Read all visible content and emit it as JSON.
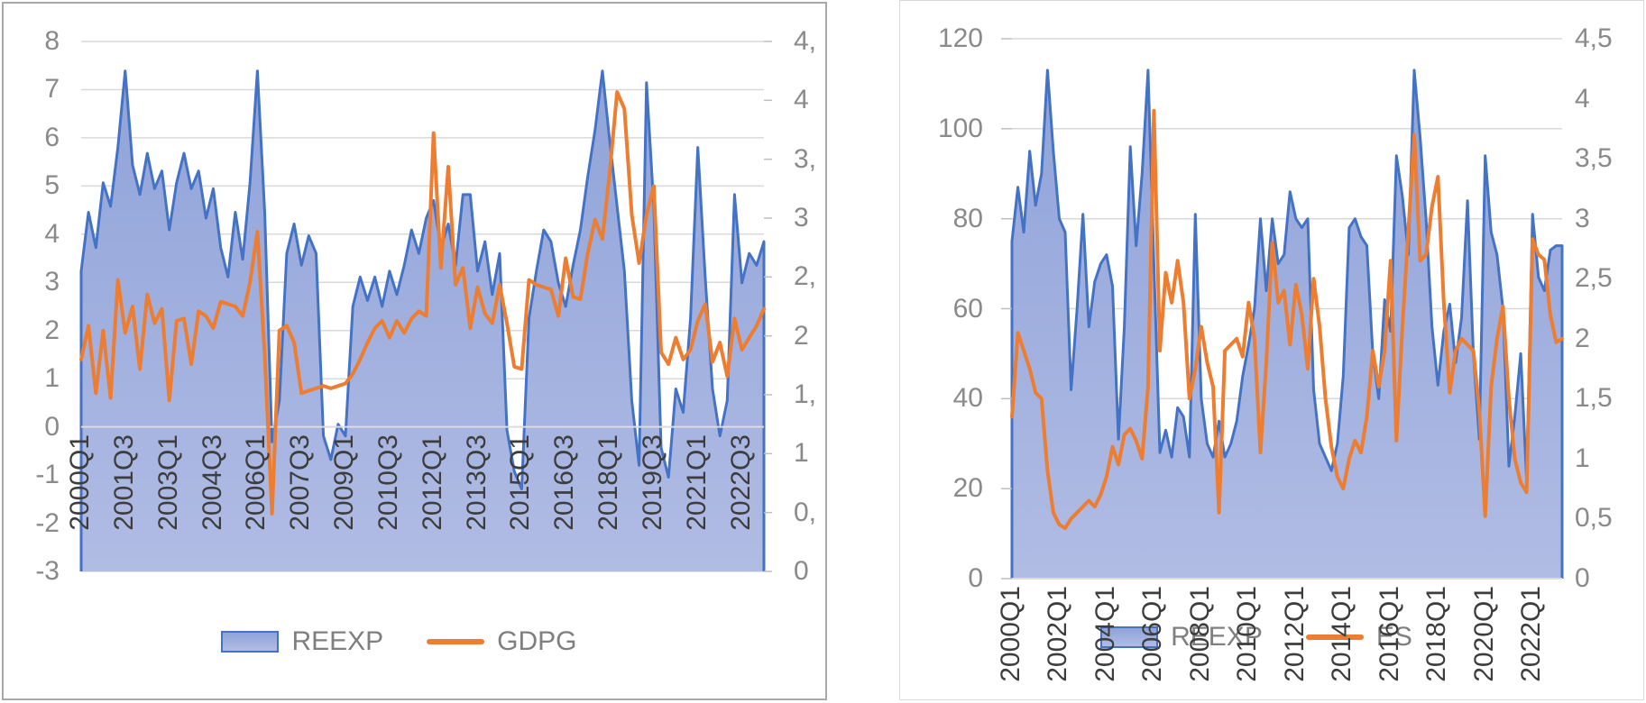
{
  "page": {
    "background": "#ffffff",
    "panel_border_left_chart": "#a8a8a8",
    "panel_border_right_chart": "#d9d9d9",
    "gridline_color": "#d9d9d9",
    "y_tick_text_color": "#8a8a8a",
    "x_tick_text_color": "#3d3d3d",
    "legend_text_color": "#7f7f7f"
  },
  "chart_data": [
    {
      "type": "area+line",
      "title": "",
      "xlabel": "",
      "ylabel": "",
      "grid": true,
      "legend_position": "bottom",
      "categories": [
        "2000Q1",
        "2000Q2",
        "2000Q3",
        "2000Q4",
        "2001Q1",
        "2001Q2",
        "2001Q3",
        "2001Q4",
        "2002Q1",
        "2002Q2",
        "2002Q3",
        "2002Q4",
        "2003Q1",
        "2003Q2",
        "2003Q3",
        "2003Q4",
        "2004Q1",
        "2004Q2",
        "2004Q3",
        "2004Q4",
        "2005Q1",
        "2005Q2",
        "2005Q3",
        "2005Q4",
        "2006Q1",
        "2006Q2",
        "2006Q3",
        "2006Q4",
        "2007Q1",
        "2007Q2",
        "2007Q3",
        "2007Q4",
        "2008Q1",
        "2008Q2",
        "2008Q3",
        "2008Q4",
        "2009Q1",
        "2009Q2",
        "2009Q3",
        "2009Q4",
        "2010Q1",
        "2010Q2",
        "2010Q3",
        "2010Q4",
        "2011Q1",
        "2011Q2",
        "2011Q3",
        "2011Q4",
        "2012Q1",
        "2012Q2",
        "2012Q3",
        "2012Q4",
        "2013Q1",
        "2013Q2",
        "2013Q3",
        "2013Q4",
        "2014Q1",
        "2014Q2",
        "2014Q3",
        "2014Q4",
        "2015Q1",
        "2015Q2",
        "2015Q3",
        "2015Q4",
        "2016Q1",
        "2016Q2",
        "2016Q3",
        "2016Q4",
        "2017Q1",
        "2017Q2",
        "2017Q3",
        "2017Q4",
        "2018Q1",
        "2018Q2",
        "2018Q3",
        "2018Q4",
        "2019Q1",
        "2019Q2",
        "2019Q3",
        "2019Q4",
        "2020Q1",
        "2020Q2",
        "2020Q3",
        "2020Q4",
        "2021Q1",
        "2021Q2",
        "2021Q3",
        "2021Q4",
        "2022Q1",
        "2022Q2",
        "2022Q3",
        "2022Q4",
        "2023Q1",
        "2023Q2"
      ],
      "x_tick_step": 6,
      "x_tick_labels": [
        "2000Q1",
        "2001Q3",
        "2003Q1",
        "2004Q3",
        "2006Q1",
        "2007Q3",
        "2009Q1",
        "2010Q3",
        "2012Q1",
        "2013Q3",
        "2015Q1",
        "2016Q3",
        "2018Q1",
        "2019Q3",
        "2021Q1",
        "2022Q3"
      ],
      "left_axis": {
        "min": -3,
        "max": 8,
        "step": 1,
        "tick_labels": [
          "8",
          "7",
          "6",
          "5",
          "4",
          "3",
          "2",
          "1",
          "0",
          "-1",
          "-2",
          "-3"
        ]
      },
      "right_axis": {
        "min": 0,
        "max": 4.5,
        "step": 0.5,
        "tick_labels": [
          "4,",
          "4",
          "3,",
          "3",
          "2,",
          "2",
          "1,",
          "1",
          "0,",
          "0"
        ],
        "note": "labels clipped at panel edge, full values 4,5 to 0"
      },
      "series": [
        {
          "name": "REEXP",
          "type": "area",
          "axis": "right",
          "color": "#4472C4",
          "fill_top": "#8FA3D9",
          "fill_bottom": "#B1BCE4",
          "values": [
            2.55,
            3.05,
            2.75,
            3.3,
            3.1,
            3.6,
            4.25,
            3.45,
            3.2,
            3.55,
            3.25,
            3.4,
            2.9,
            3.3,
            3.55,
            3.25,
            3.4,
            3.0,
            3.25,
            2.75,
            2.5,
            3.05,
            2.65,
            3.3,
            4.25,
            3.05,
            1.1,
            1.45,
            2.7,
            2.95,
            2.6,
            2.85,
            2.7,
            1.15,
            0.95,
            1.25,
            1.15,
            2.25,
            2.5,
            2.3,
            2.5,
            2.25,
            2.55,
            2.35,
            2.6,
            2.9,
            2.7,
            3.0,
            3.15,
            2.75,
            2.95,
            2.6,
            3.2,
            3.2,
            2.55,
            2.8,
            2.35,
            2.7,
            1.2,
            0.85,
            0.7,
            2.15,
            2.55,
            2.9,
            2.8,
            2.45,
            2.25,
            2.6,
            2.9,
            3.35,
            3.75,
            4.25,
            3.65,
            3.1,
            2.55,
            1.45,
            0.9,
            4.15,
            3.1,
            1.05,
            0.8,
            1.55,
            1.35,
            2.15,
            3.6,
            2.5,
            1.55,
            1.15,
            1.45,
            3.2,
            2.45,
            2.7,
            2.6,
            2.8
          ]
        },
        {
          "name": "GDPG",
          "type": "line",
          "axis": "left",
          "color": "#ED7D31",
          "values": [
            1.4,
            2.1,
            0.7,
            2.0,
            0.6,
            3.05,
            1.95,
            2.5,
            1.2,
            2.75,
            2.15,
            2.45,
            0.55,
            2.2,
            2.25,
            1.3,
            2.4,
            2.3,
            2.05,
            2.6,
            2.55,
            2.5,
            2.3,
            3.0,
            4.05,
            1.5,
            -1.8,
            2.0,
            2.1,
            1.75,
            0.7,
            0.75,
            0.8,
            0.85,
            0.8,
            0.85,
            0.9,
            1.1,
            1.4,
            1.75,
            2.05,
            2.2,
            1.85,
            2.2,
            1.95,
            2.25,
            2.4,
            2.3,
            6.1,
            3.3,
            5.4,
            2.95,
            3.3,
            2.05,
            2.9,
            2.35,
            2.15,
            2.95,
            2.15,
            1.25,
            1.2,
            3.05,
            2.95,
            2.9,
            2.85,
            2.3,
            3.5,
            2.7,
            2.65,
            3.6,
            4.3,
            3.9,
            5.3,
            6.95,
            6.6,
            4.4,
            3.4,
            4.4,
            5.0,
            1.55,
            1.3,
            1.85,
            1.4,
            1.6,
            2.2,
            2.55,
            1.35,
            1.75,
            1.05,
            2.25,
            1.6,
            1.85,
            2.1,
            2.45
          ]
        }
      ],
      "legend": [
        "REEXP",
        "GDPG"
      ]
    },
    {
      "type": "area+line",
      "title": "",
      "xlabel": "",
      "ylabel": "",
      "grid": true,
      "legend_position": "bottom",
      "categories": [
        "2000Q1",
        "2000Q2",
        "2000Q3",
        "2000Q4",
        "2001Q1",
        "2001Q2",
        "2001Q3",
        "2001Q4",
        "2002Q1",
        "2002Q2",
        "2002Q3",
        "2002Q4",
        "2003Q1",
        "2003Q2",
        "2003Q3",
        "2003Q4",
        "2004Q1",
        "2004Q2",
        "2004Q3",
        "2004Q4",
        "2005Q1",
        "2005Q2",
        "2005Q3",
        "2005Q4",
        "2006Q1",
        "2006Q2",
        "2006Q3",
        "2006Q4",
        "2007Q1",
        "2007Q2",
        "2007Q3",
        "2007Q4",
        "2008Q1",
        "2008Q2",
        "2008Q3",
        "2008Q4",
        "2009Q1",
        "2009Q2",
        "2009Q3",
        "2009Q4",
        "2010Q1",
        "2010Q2",
        "2010Q3",
        "2010Q4",
        "2011Q1",
        "2011Q2",
        "2011Q3",
        "2011Q4",
        "2012Q1",
        "2012Q2",
        "2012Q3",
        "2012Q4",
        "2013Q1",
        "2013Q2",
        "2013Q3",
        "2013Q4",
        "2014Q1",
        "2014Q2",
        "2014Q3",
        "2014Q4",
        "2015Q1",
        "2015Q2",
        "2015Q3",
        "2015Q4",
        "2016Q1",
        "2016Q2",
        "2016Q3",
        "2016Q4",
        "2017Q1",
        "2017Q2",
        "2017Q3",
        "2017Q4",
        "2018Q1",
        "2018Q2",
        "2018Q3",
        "2018Q4",
        "2019Q1",
        "2019Q2",
        "2019Q3",
        "2019Q4",
        "2020Q1",
        "2020Q2",
        "2020Q3",
        "2020Q4",
        "2021Q1",
        "2021Q2",
        "2021Q3",
        "2021Q4",
        "2022Q1",
        "2022Q2",
        "2022Q3",
        "2022Q4",
        "2023Q1",
        "2023Q2"
      ],
      "x_tick_step": 8,
      "x_tick_labels": [
        "2000Q1",
        "2002Q1",
        "2004Q1",
        "2006Q1",
        "2008Q1",
        "2010Q1",
        "2012Q1",
        "2014Q1",
        "2016Q1",
        "2018Q1",
        "2020Q1",
        "2022Q1"
      ],
      "left_axis": {
        "min": 0,
        "max": 120,
        "step": 20,
        "tick_labels": [
          "120",
          "100",
          "80",
          "60",
          "40",
          "20",
          "0"
        ]
      },
      "right_axis": {
        "min": 0,
        "max": 4.5,
        "step": 0.5,
        "tick_labels": [
          "4,5",
          "4",
          "3,5",
          "3",
          "2,5",
          "2",
          "1,5",
          "1",
          "0,5",
          "0"
        ]
      },
      "series": [
        {
          "name": "REEXP",
          "type": "area",
          "axis": "left",
          "color": "#4472C4",
          "fill_top": "#8FA3D9",
          "fill_bottom": "#B1BCE4",
          "values": [
            75,
            87,
            77,
            95,
            83,
            90,
            113,
            95,
            80,
            77,
            42,
            60,
            81,
            56,
            66,
            70,
            72,
            65,
            31,
            56,
            96,
            74,
            90,
            113,
            70,
            28,
            33,
            27,
            38,
            36,
            27,
            81,
            40,
            30,
            27,
            35,
            27,
            30,
            35,
            45,
            52,
            60,
            80,
            64,
            80,
            70,
            72,
            86,
            80,
            78,
            80,
            42,
            30,
            27,
            24,
            30,
            45,
            78,
            80,
            76,
            74,
            50,
            40,
            62,
            55,
            94,
            85,
            72,
            113,
            98,
            80,
            56,
            43,
            55,
            61,
            48,
            58,
            84,
            50,
            31,
            94,
            77,
            72,
            60,
            25,
            36,
            50,
            22,
            81,
            67,
            64,
            73,
            74,
            74
          ]
        },
        {
          "name": "ES",
          "type": "line",
          "axis": "right",
          "color": "#ED7D31",
          "values": [
            1.35,
            2.05,
            1.9,
            1.75,
            1.55,
            1.5,
            0.9,
            0.55,
            0.45,
            0.42,
            0.5,
            0.55,
            0.6,
            0.65,
            0.6,
            0.7,
            0.85,
            1.1,
            0.95,
            1.2,
            1.25,
            1.15,
            1.0,
            1.6,
            3.9,
            1.9,
            2.55,
            2.3,
            2.65,
            2.3,
            1.5,
            1.75,
            2.1,
            1.8,
            1.6,
            0.55,
            1.9,
            1.95,
            2.0,
            1.85,
            2.3,
            2.0,
            1.05,
            1.8,
            2.8,
            2.3,
            2.4,
            1.95,
            2.45,
            2.2,
            1.75,
            2.5,
            2.1,
            1.5,
            1.1,
            0.85,
            0.75,
            1.0,
            1.15,
            1.05,
            1.35,
            1.9,
            1.6,
            1.9,
            2.65,
            1.15,
            2.1,
            2.9,
            3.7,
            2.65,
            2.7,
            3.1,
            3.35,
            2.3,
            1.55,
            1.9,
            2.0,
            1.95,
            1.9,
            1.4,
            0.52,
            1.6,
            2.0,
            2.27,
            1.5,
            1.0,
            0.8,
            0.72,
            2.83,
            2.7,
            2.66,
            2.2,
            1.97,
            2.0
          ]
        }
      ],
      "legend": [
        "REEXP",
        "ES"
      ]
    }
  ]
}
